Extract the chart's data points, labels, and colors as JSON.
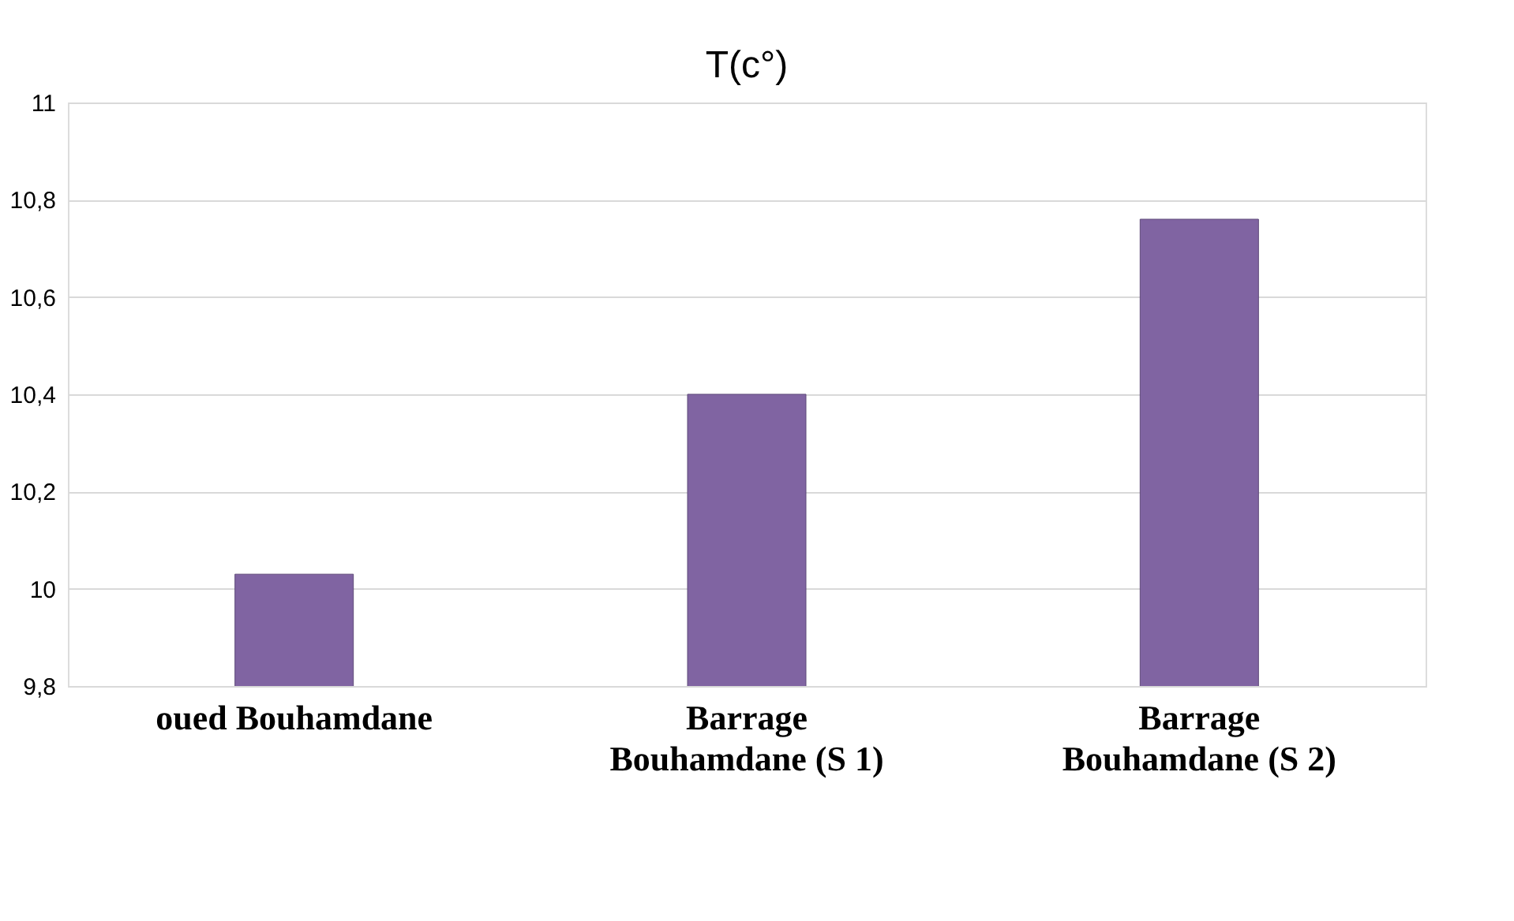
{
  "chart_data": {
    "type": "bar",
    "title": "T(c°)",
    "categories": [
      "oued Bouhamdane",
      "Barrage Bouhamdane (S 1)",
      "Barrage Bouhamdane (S  2)"
    ],
    "values": [
      10.03,
      10.4,
      10.76
    ],
    "color": "#8064a2",
    "ylim": [
      9.8,
      11
    ],
    "yticks": [
      {
        "value": 9.8,
        "label": "9,8"
      },
      {
        "value": 10,
        "label": "10"
      },
      {
        "value": 10.2,
        "label": "10,2"
      },
      {
        "value": 10.4,
        "label": "10,4"
      },
      {
        "value": 10.6,
        "label": "10,6"
      },
      {
        "value": 10.8,
        "label": "10,8"
      },
      {
        "value": 11,
        "label": "11"
      }
    ],
    "grid": "y"
  }
}
